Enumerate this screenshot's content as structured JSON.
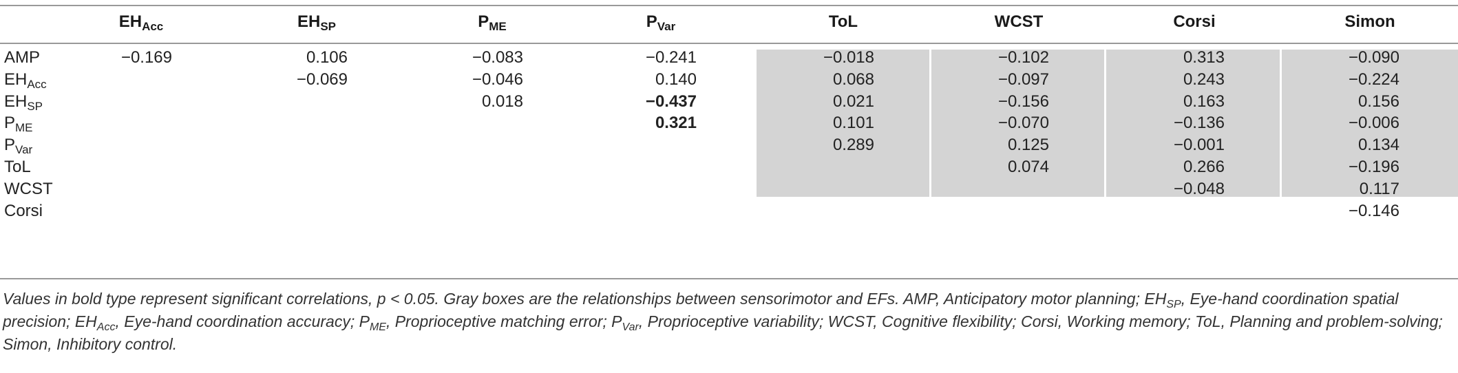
{
  "columns": [
    {
      "id": "eh_acc",
      "main": "EH",
      "sub": "Acc"
    },
    {
      "id": "eh_sp",
      "main": "EH",
      "sub": "SP"
    },
    {
      "id": "p_me",
      "main": "P",
      "sub": "ME"
    },
    {
      "id": "p_var",
      "main": "P",
      "sub": "Var"
    },
    {
      "id": "tol",
      "main": "ToL",
      "sub": ""
    },
    {
      "id": "wcst",
      "main": "WCST",
      "sub": ""
    },
    {
      "id": "corsi",
      "main": "Corsi",
      "sub": ""
    },
    {
      "id": "simon",
      "main": "Simon",
      "sub": ""
    }
  ],
  "rows": [
    {
      "main": "AMP",
      "sub": "",
      "cells": [
        "−0.169",
        "0.106",
        "−0.083",
        "−0.241",
        "−0.018",
        "−0.102",
        "0.313",
        "−0.090"
      ]
    },
    {
      "main": "EH",
      "sub": "Acc",
      "cells": [
        "",
        "−0.069",
        "−0.046",
        "0.140",
        "0.068",
        "−0.097",
        "0.243",
        "−0.224"
      ]
    },
    {
      "main": "EH",
      "sub": "SP",
      "cells": [
        "",
        "",
        "0.018",
        "−0.437",
        "0.021",
        "−0.156",
        "0.163",
        "0.156"
      ]
    },
    {
      "main": "P",
      "sub": "ME",
      "cells": [
        "",
        "",
        "",
        "0.321",
        "0.101",
        "−0.070",
        "−0.136",
        "−0.006"
      ]
    },
    {
      "main": "P",
      "sub": "Var",
      "cells": [
        "",
        "",
        "",
        "",
        "0.289",
        "0.125",
        "−0.001",
        "0.134"
      ]
    },
    {
      "main": "ToL",
      "sub": "",
      "cells": [
        "",
        "",
        "",
        "",
        "",
        "0.074",
        "0.266",
        "−0.196"
      ]
    },
    {
      "main": "WCST",
      "sub": "",
      "cells": [
        "",
        "",
        "",
        "",
        "",
        "",
        "−0.048",
        "0.117"
      ]
    },
    {
      "main": "Corsi",
      "sub": "",
      "cells": [
        "",
        "",
        "",
        "",
        "",
        "",
        "",
        "−0.146"
      ]
    }
  ],
  "bold_cells": [
    [
      2,
      3
    ],
    [
      3,
      3
    ]
  ],
  "footnote": {
    "line1": "Values in bold type represent significant correlations, p < 0.05. Gray boxes are the relationships between sensorimotor and EFs. AMP, Anticipatory motor planning; EH",
    "sp_sub": "SP",
    "line2a": ", Eye-hand coordination spatial precision; EH",
    "acc_sub": "Acc",
    "line2b": ", Eye-hand coordination accuracy; P",
    "me_sub": "ME",
    "line2c": ", Proprioceptive matching error; P",
    "var_sub": "Var",
    "line2d": ", Proprioceptive variability; WCST, Cognitive flexibility; Corsi, Working memory; ToL, Planning and problem-solving; Simon, Inhibitory control."
  },
  "colors": {
    "gray_box": "#d4d4d4",
    "rule": "#999999"
  }
}
